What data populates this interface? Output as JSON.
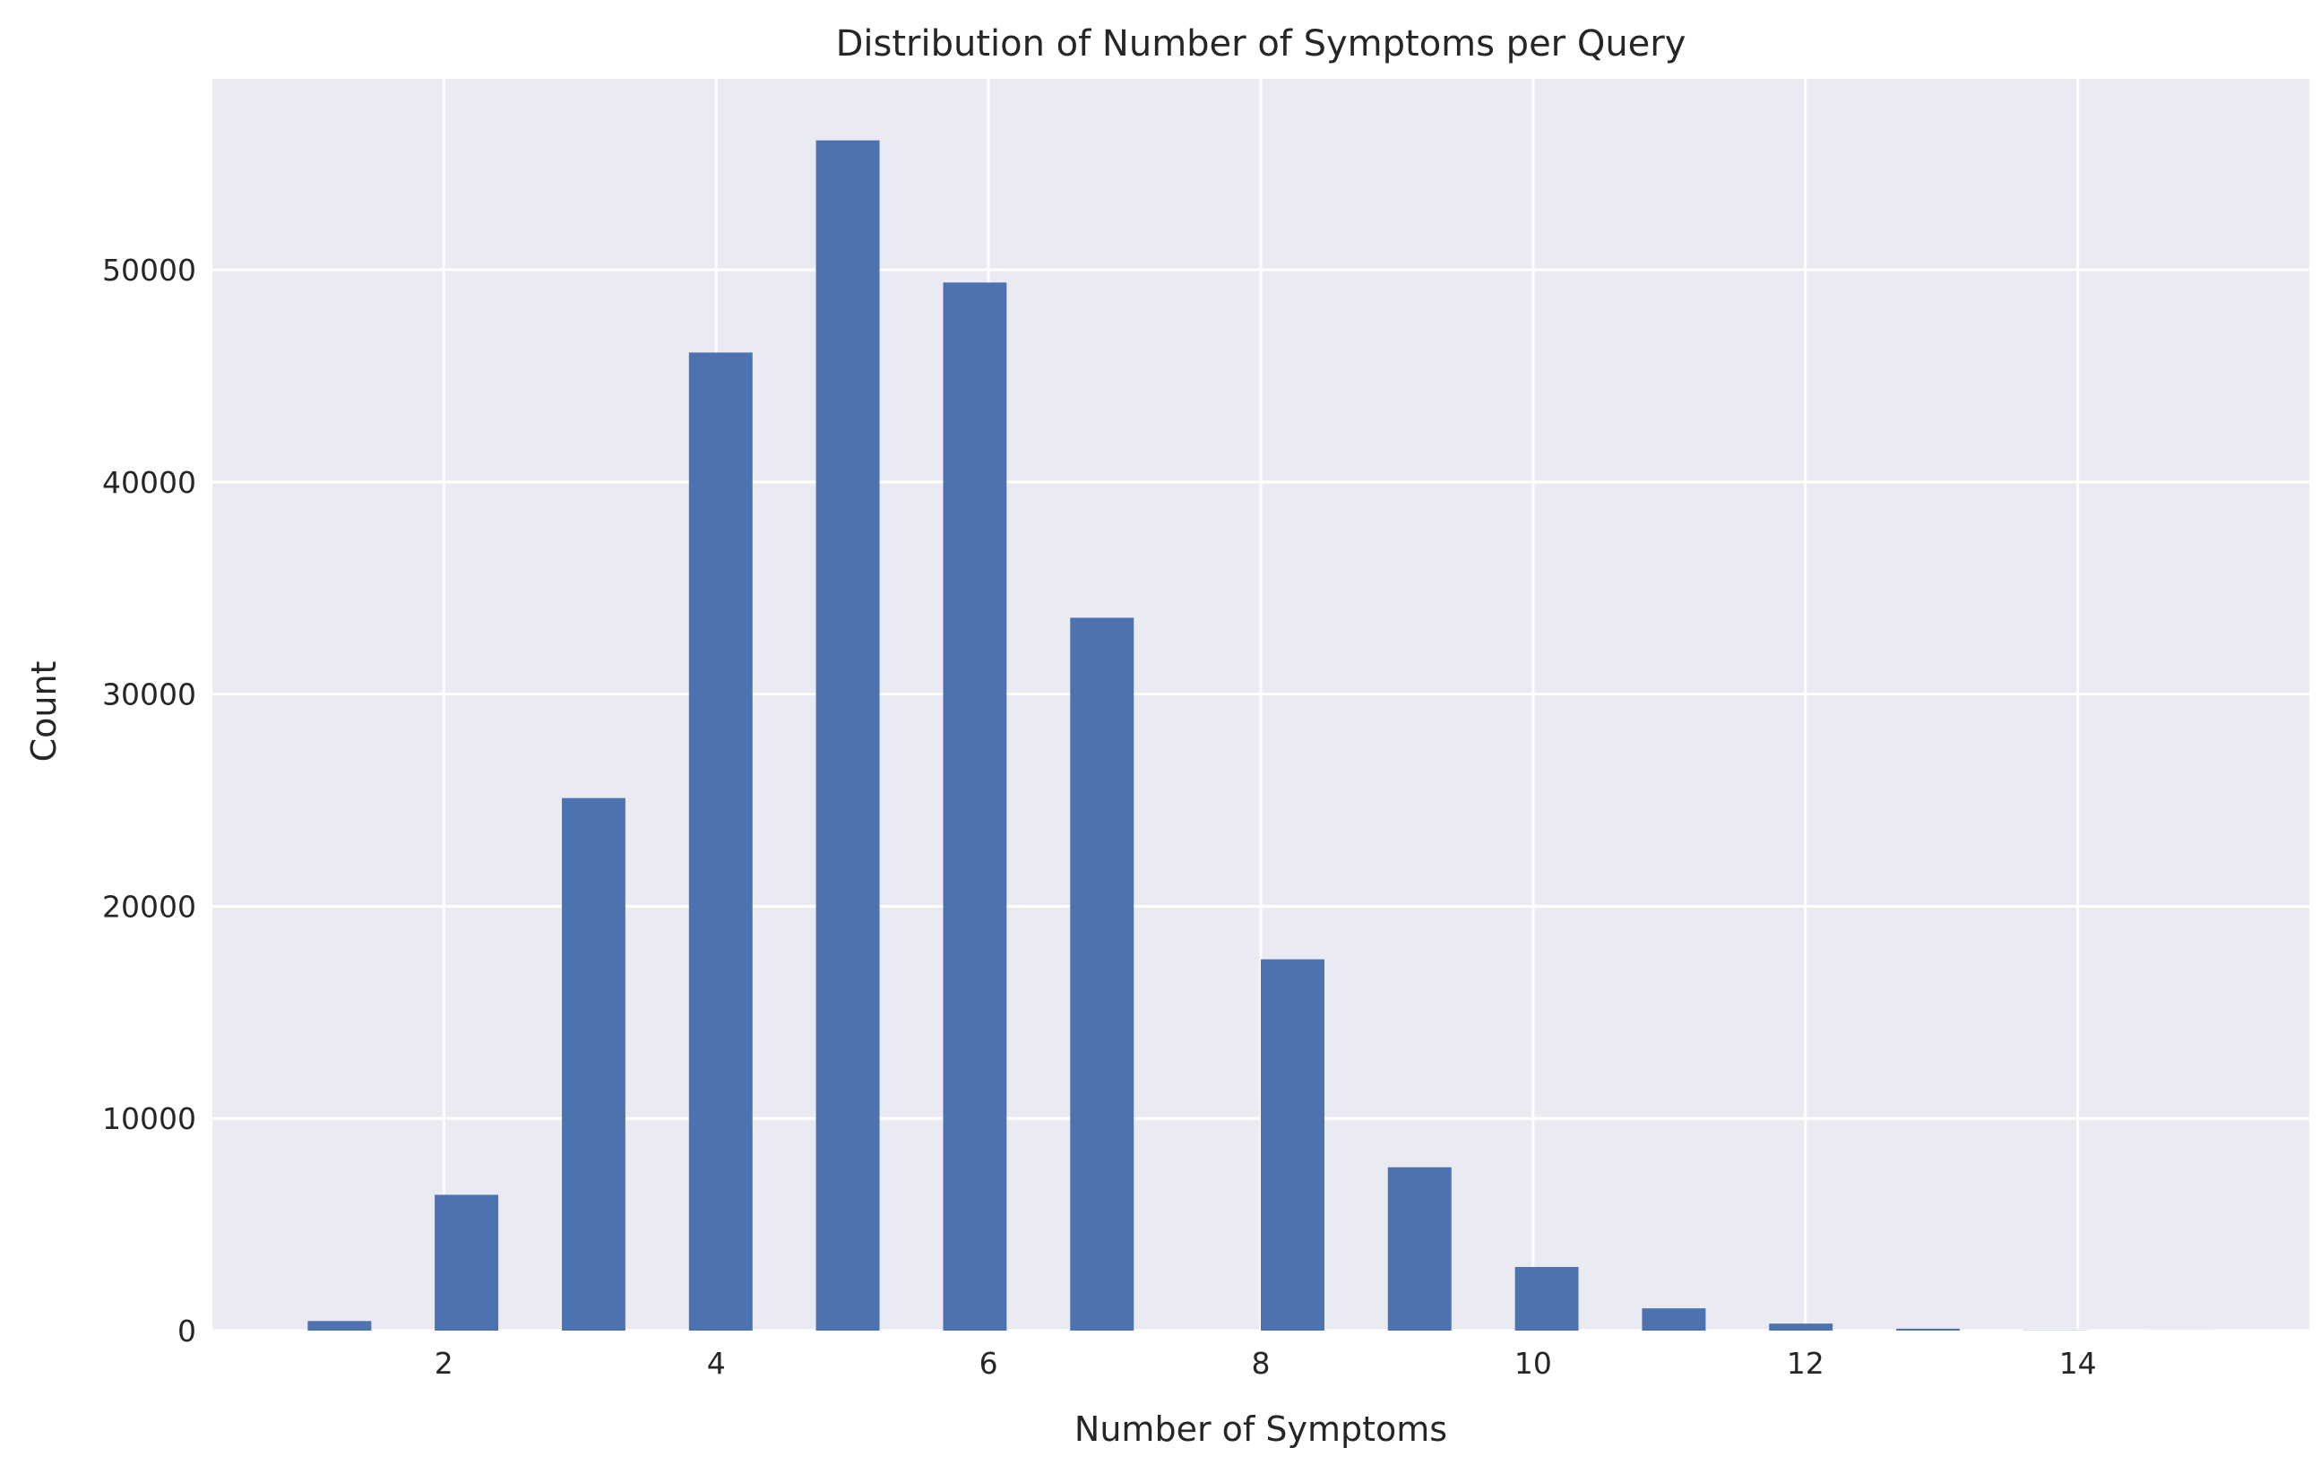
{
  "chart_data": {
    "type": "bar",
    "title": "Distribution of Number of Symptoms per Query",
    "xlabel": "Number of Symptoms",
    "ylabel": "Count",
    "xlim": [
      0.3,
      15.7
    ],
    "ylim": [
      0,
      59000
    ],
    "xticks": [
      2,
      4,
      6,
      8,
      10,
      12,
      14
    ],
    "yticks": [
      0,
      10000,
      20000,
      30000,
      40000,
      50000
    ],
    "grid": true,
    "bar_color": "#4c72b0",
    "background_color": "#eaeaf2",
    "grid_color": "#ffffff",
    "bars": [
      {
        "start": 1.0,
        "end": 1.467,
        "value": 450
      },
      {
        "start": 1.933,
        "end": 2.4,
        "value": 6400
      },
      {
        "start": 2.867,
        "end": 3.333,
        "value": 25100
      },
      {
        "start": 3.8,
        "end": 4.267,
        "value": 46100
      },
      {
        "start": 4.733,
        "end": 5.2,
        "value": 56100
      },
      {
        "start": 5.667,
        "end": 6.133,
        "value": 49400
      },
      {
        "start": 6.6,
        "end": 7.067,
        "value": 33600
      },
      {
        "start": 7.533,
        "end": 8.0,
        "value": 0
      },
      {
        "start": 8.0,
        "end": 8.467,
        "value": 17500
      },
      {
        "start": 8.933,
        "end": 9.4,
        "value": 7700
      },
      {
        "start": 9.867,
        "end": 10.333,
        "value": 3000
      },
      {
        "start": 10.8,
        "end": 11.267,
        "value": 1050
      },
      {
        "start": 11.733,
        "end": 12.2,
        "value": 330
      },
      {
        "start": 12.667,
        "end": 13.133,
        "value": 90
      },
      {
        "start": 13.6,
        "end": 14.067,
        "value": 10
      },
      {
        "start": 14.533,
        "end": 15.0,
        "value": 3
      }
    ]
  }
}
